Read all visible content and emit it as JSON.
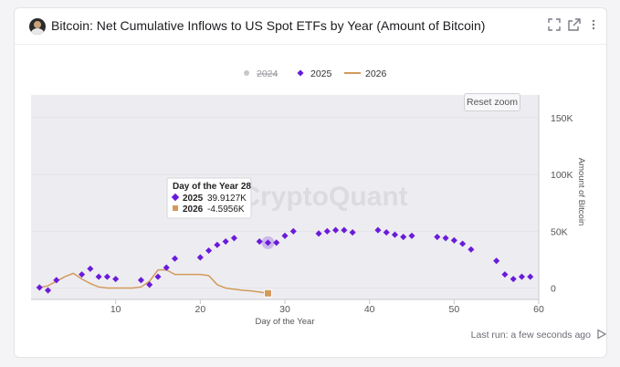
{
  "header": {
    "title": "Bitcoin: Net Cumulative Inflows to US Spot ETFs by Year (Amount of Bitcoin)",
    "icons": [
      "expand-icon",
      "external-link-icon",
      "more-vertical-icon"
    ]
  },
  "watermark": "CryptoQuant",
  "reset_zoom_label": "Reset zoom",
  "footer": {
    "last_run": "Last run: a few seconds ago"
  },
  "tooltip": {
    "title": "Day of the Year 28",
    "rows": [
      {
        "series": "2025",
        "value": "39.9127K",
        "color": "#6a1bd9"
      },
      {
        "series": "2026",
        "value": "-4.5956K",
        "color": "#d39a5c"
      }
    ]
  },
  "chart_data": {
    "type": "scatter",
    "xlabel": "Day of the Year",
    "ylabel": "Amount of Bitcoin",
    "x_ticks": [
      10,
      20,
      30,
      40,
      50,
      60
    ],
    "y_ticks": [
      0,
      50000,
      100000,
      150000
    ],
    "y_tick_labels": [
      "0",
      "50K",
      "100K",
      "150K"
    ],
    "xlim": [
      0,
      60
    ],
    "ylim": [
      -10000,
      170000
    ],
    "legend": [
      {
        "name": "2024",
        "hidden": true,
        "color": "#c8c8cc",
        "marker": "circle"
      },
      {
        "name": "2025",
        "hidden": false,
        "color": "#6a1bd9",
        "marker": "diamond"
      },
      {
        "name": "2026",
        "hidden": false,
        "color": "#d39a5c",
        "marker": "line"
      }
    ],
    "series": [
      {
        "name": "2025",
        "marker": "diamond",
        "color": "#6a1bd9",
        "x": [
          1,
          2,
          3,
          6,
          7,
          8,
          9,
          10,
          13,
          14,
          15,
          16,
          17,
          20,
          21,
          22,
          23,
          24,
          27,
          28,
          29,
          30,
          31,
          34,
          35,
          36,
          37,
          38,
          41,
          42,
          43,
          44,
          45,
          48,
          49,
          50,
          51,
          52,
          55,
          56,
          57,
          58,
          59
        ],
        "y": [
          500,
          -2000,
          7000,
          12000,
          17000,
          10000,
          10000,
          8000,
          7000,
          3000,
          10000,
          18000,
          26000,
          27000,
          33000,
          38000,
          41000,
          44000,
          41000,
          39913,
          40000,
          46000,
          50000,
          48000,
          50000,
          51000,
          51000,
          49000,
          51000,
          49000,
          47000,
          45000,
          46000,
          45000,
          44000,
          42000,
          39000,
          34000,
          24000,
          12000,
          8000,
          10000,
          10000
        ]
      },
      {
        "name": "2026",
        "marker": "line",
        "color": "#d39a5c",
        "x": [
          1,
          2,
          3,
          4,
          5,
          6,
          7,
          8,
          9,
          10,
          11,
          12,
          13,
          14,
          15,
          16,
          17,
          18,
          19,
          20,
          21,
          22,
          23,
          24,
          25,
          26,
          27,
          28
        ],
        "y": [
          500,
          2000,
          6000,
          10000,
          13000,
          8000,
          4000,
          1000,
          0,
          0,
          0,
          0,
          1000,
          6000,
          16000,
          16000,
          12000,
          12000,
          12000,
          12000,
          11000,
          3000,
          0,
          -1000,
          -2000,
          -2500,
          -3500,
          -4596
        ]
      }
    ],
    "grid": true,
    "legend_position": "top-center"
  }
}
